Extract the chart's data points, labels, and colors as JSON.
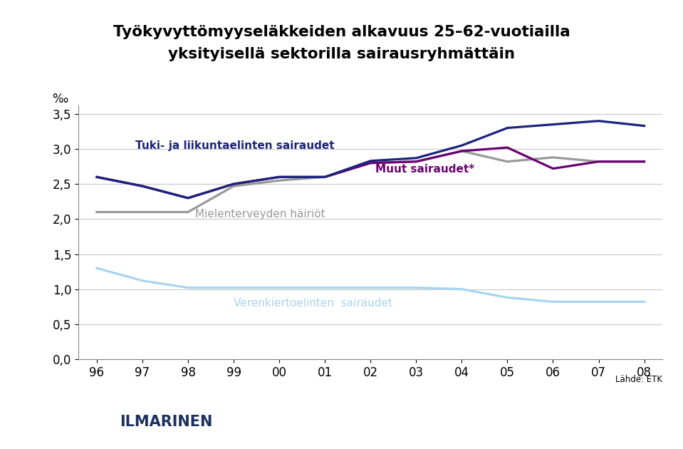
{
  "title_line1": "Työkyvyttömyyseläkkeiden alkavuus 25–62-vuotiailla",
  "title_line2": "yksityisellä sektorilla sairausryhmättäin",
  "ylabel": "‰",
  "years_idx": [
    0,
    1,
    2,
    3,
    4,
    5,
    6,
    7,
    8,
    9,
    10,
    11,
    12
  ],
  "year_labels": [
    "96",
    "97",
    "98",
    "99",
    "00",
    "01",
    "02",
    "03",
    "04",
    "05",
    "06",
    "07",
    "08"
  ],
  "tuki": [
    2.6,
    2.47,
    2.3,
    2.5,
    2.6,
    2.6,
    2.83,
    2.87,
    3.05,
    3.3,
    3.35,
    3.4,
    3.33
  ],
  "muut": [
    2.6,
    2.47,
    2.3,
    2.5,
    2.6,
    2.6,
    2.8,
    2.82,
    2.97,
    3.02,
    2.72,
    2.82,
    2.82
  ],
  "mielenterveys": [
    2.1,
    2.1,
    2.1,
    2.47,
    2.55,
    2.6,
    2.8,
    2.82,
    2.97,
    2.82,
    2.88,
    2.82,
    2.82
  ],
  "verenkierto": [
    1.3,
    1.12,
    1.02,
    1.02,
    1.02,
    1.02,
    1.02,
    1.02,
    1.0,
    0.88,
    0.82,
    0.82,
    0.82
  ],
  "tuki_color": "#1a237e",
  "muut_color": "#6a0070",
  "mielenterveys_color": "#999999",
  "verenkierto_color": "#a8d4f0",
  "ylim_min": 0.0,
  "ylim_max": 3.5,
  "yticks": [
    0.0,
    0.5,
    1.0,
    1.5,
    2.0,
    2.5,
    3.0,
    3.5
  ],
  "ytick_labels": [
    "0,0",
    "0,5",
    "1,0",
    "1,5",
    "2,0",
    "2,5",
    "3,0",
    "3,5"
  ],
  "bg_color": "#ffffff",
  "grid_color": "#c8c8c8",
  "label_tuki": "Tuki- ja liikuntaelinten sairaudet",
  "label_muut": "Muut sairaudet*",
  "label_mielenterveys": "Mielenterveyden häiriöt",
  "label_verenkierto": "Verenkiertoelinten  sairaudet",
  "footer_text": "Lähde: ETK",
  "footer_logo_text": "ILMARINEN",
  "footer_color": "#b8cfe0",
  "linewidth": 2.3
}
